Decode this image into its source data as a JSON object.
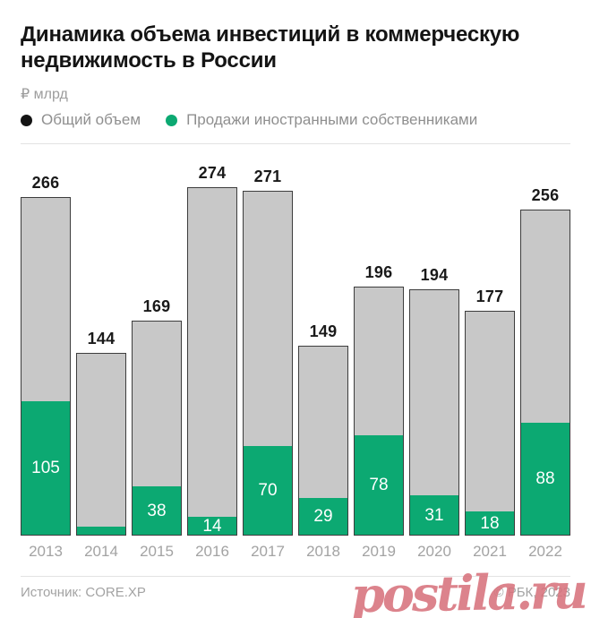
{
  "header": {
    "title": "Динамика объема инвестиций в коммерческую недвижимость в России",
    "unit_label": "₽ млрд",
    "legend": [
      {
        "label": "Общий объем",
        "color": "#141414"
      },
      {
        "label": "Продажи иностранными собственниками",
        "color": "#0ca972"
      }
    ]
  },
  "chart_data": {
    "type": "bar",
    "title": "Динамика объема инвестиций в коммерческую недвижимость в России",
    "ylabel": "₽ млрд",
    "categories": [
      "2013",
      "2014",
      "2015",
      "2016",
      "2017",
      "2018",
      "2019",
      "2020",
      "2021",
      "2022"
    ],
    "series": [
      {
        "name": "Общий объем",
        "color": "#c8c8c8",
        "values": [
          266,
          144,
          169,
          274,
          271,
          149,
          196,
          194,
          177,
          256
        ],
        "labels": [
          "266",
          "144",
          "169",
          "274",
          "271",
          "149",
          "196",
          "194",
          "177",
          "256"
        ]
      },
      {
        "name": "Продажи иностранными собственниками",
        "color": "#0ca972",
        "values": [
          105,
          6,
          38,
          14,
          70,
          29,
          78,
          31,
          18,
          88
        ],
        "labels": [
          "105",
          "",
          "38",
          "14",
          "70",
          "29",
          "78",
          "31",
          "18",
          "88"
        ]
      }
    ],
    "ylim": [
      0,
      280
    ],
    "grid": false,
    "legend_position": "top"
  },
  "footer": {
    "source": "Источник: CORE.XP",
    "copyright": "© РБК, 2023",
    "watermark": "postila.ru"
  },
  "colors": {
    "bar_fill": "#c8c8c8",
    "bar_border": "#3d3d3d",
    "green": "#0ca972",
    "divider": "#e3e3e3",
    "watermark": "#d8737d"
  }
}
